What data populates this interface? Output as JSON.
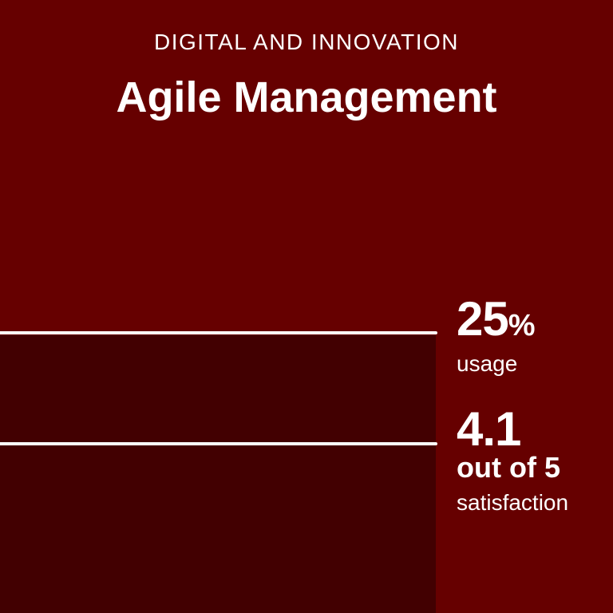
{
  "header": {
    "eyebrow": "DIGITAL AND INNOVATION",
    "title": "Agile Management"
  },
  "metrics": {
    "usage": {
      "value": "25",
      "unit": "%",
      "label": "usage",
      "percent": 25
    },
    "satisfaction": {
      "value": "4.1",
      "scale_text": "out of 5",
      "label": "satisfaction",
      "score": 4.1,
      "max": 5
    }
  },
  "colors": {
    "background": "#660000",
    "bar_fill": "#420001",
    "line": "#ffffff",
    "text": "#ffffff"
  }
}
